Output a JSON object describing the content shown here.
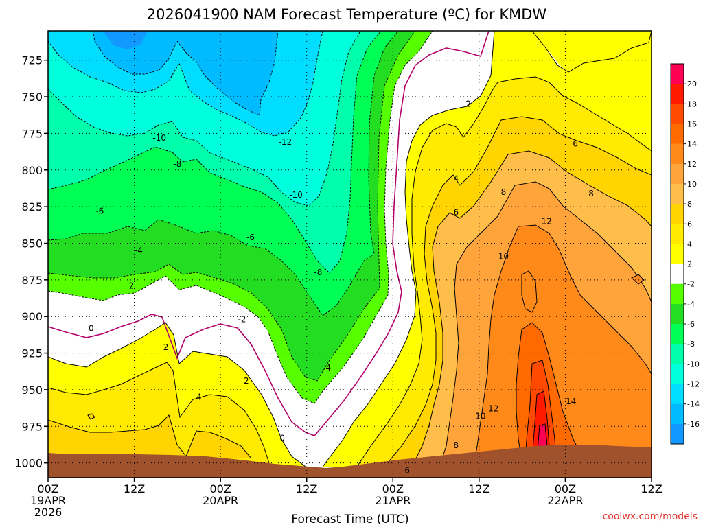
{
  "chart_data": {
    "type": "heatmap",
    "title": "2026041900 NAM Forecast Temperature (ºC) for KMDW",
    "xlabel": "Forecast Time (UTC)",
    "ylabel": "",
    "credit": "coolwx.com/models",
    "x_ticks": [
      {
        "hour": 0,
        "lines": [
          "00Z",
          "19APR",
          "2026"
        ]
      },
      {
        "hour": 12,
        "lines": [
          "12Z"
        ]
      },
      {
        "hour": 24,
        "lines": [
          "00Z",
          "20APR"
        ]
      },
      {
        "hour": 36,
        "lines": [
          "12Z"
        ]
      },
      {
        "hour": 48,
        "lines": [
          "00Z",
          "21APR"
        ]
      },
      {
        "hour": 60,
        "lines": [
          "12Z"
        ]
      },
      {
        "hour": 72,
        "lines": [
          "00Z",
          "22APR"
        ]
      },
      {
        "hour": 84,
        "lines": [
          "12Z"
        ]
      }
    ],
    "xlim": [
      0,
      84
    ],
    "y_ticks": [
      725,
      750,
      775,
      800,
      825,
      850,
      875,
      900,
      925,
      950,
      975,
      1000
    ],
    "ylim": [
      705,
      1010
    ],
    "grid": true,
    "colorbar": {
      "levels": [
        20,
        18,
        16,
        14,
        12,
        10,
        8,
        6,
        4,
        2,
        -2,
        -4,
        -6,
        -8,
        -10,
        -12,
        -14,
        -16
      ],
      "colors": [
        "#ff0055",
        "#ff1a00",
        "#ff4a00",
        "#ff6a00",
        "#ff8a1a",
        "#ffa43a",
        "#ffbe4a",
        "#ffd400",
        "#ffea00",
        "#ffff00",
        "#ffffff",
        "#55ff00",
        "#22dd22",
        "#00ff55",
        "#00ffaa",
        "#00ffdd",
        "#00ddff",
        "#00bbff",
        "#1199ff"
      ]
    },
    "contour_labels": [
      {
        "text": "-10",
        "hour": 15.5,
        "pres": 778
      },
      {
        "text": "-8",
        "hour": 18,
        "pres": 796
      },
      {
        "text": "-12",
        "hour": 33,
        "pres": 781
      },
      {
        "text": "-10",
        "hour": 34.5,
        "pres": 817
      },
      {
        "text": "-6",
        "hour": 7.2,
        "pres": 828
      },
      {
        "text": "-6",
        "hour": 28.2,
        "pres": 846
      },
      {
        "text": "-4",
        "hour": 12.6,
        "pres": 855
      },
      {
        "text": "-8",
        "hour": 37.6,
        "pres": 870
      },
      {
        "text": "2",
        "hour": 11.6,
        "pres": 879
      },
      {
        "text": "0",
        "hour": 6,
        "pres": 908
      },
      {
        "text": "2",
        "hour": 16.4,
        "pres": 921
      },
      {
        "text": "-2",
        "hour": 27,
        "pres": 902
      },
      {
        "text": "-4",
        "hour": 38.8,
        "pres": 935
      },
      {
        "text": "2",
        "hour": 27.6,
        "pres": 944
      },
      {
        "text": "4",
        "hour": 21,
        "pres": 955
      },
      {
        "text": "0",
        "hour": 32.6,
        "pres": 983
      },
      {
        "text": "2",
        "hour": 58.5,
        "pres": 755
      },
      {
        "text": "4",
        "hour": 56.8,
        "pres": 806
      },
      {
        "text": "6",
        "hour": 56.8,
        "pres": 829
      },
      {
        "text": "8",
        "hour": 63.4,
        "pres": 815
      },
      {
        "text": "6",
        "hour": 73.4,
        "pres": 782
      },
      {
        "text": "8",
        "hour": 75.6,
        "pres": 816
      },
      {
        "text": "12",
        "hour": 69.4,
        "pres": 835
      },
      {
        "text": "10",
        "hour": 63.4,
        "pres": 859
      },
      {
        "text": "14",
        "hour": 72.8,
        "pres": 958
      },
      {
        "text": "10",
        "hour": 60.2,
        "pres": 968
      },
      {
        "text": "12",
        "hour": 62,
        "pres": 963
      },
      {
        "text": "8",
        "hour": 56.8,
        "pres": 988
      },
      {
        "text": "6",
        "hour": 50,
        "pres": 1005
      }
    ]
  }
}
